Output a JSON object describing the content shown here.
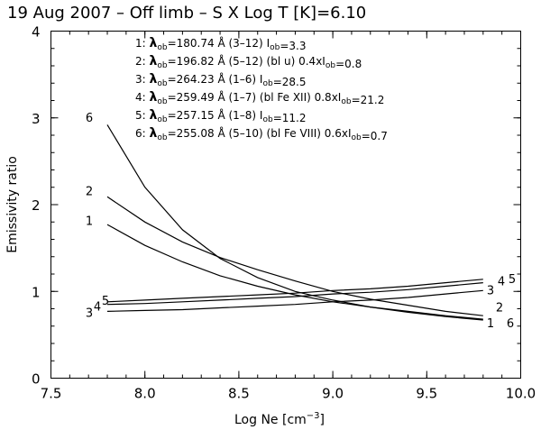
{
  "chart_data": {
    "type": "line",
    "title": "19 Aug 2007 – Off limb –    S  X   Log T [K]=6.10",
    "xlabel": "Log Ne [cm",
    "xlabel_sup": "−3",
    "xlabel_tail": "]",
    "ylabel": "Emissivity ratio",
    "xlim": [
      7.5,
      10.0
    ],
    "ylim": [
      0,
      4
    ],
    "xticks": [
      "7.5",
      "8.0",
      "8.5",
      "9.0",
      "9.5",
      "10.0"
    ],
    "xtick_values": [
      7.5,
      8.0,
      8.5,
      9.0,
      9.5,
      10.0
    ],
    "yticks": [
      "0",
      "1",
      "2",
      "3",
      "4"
    ],
    "ytick_values": [
      0,
      1,
      2,
      3,
      4
    ],
    "x": [
      7.8,
      8.0,
      8.2,
      8.4,
      8.6,
      8.8,
      9.0,
      9.2,
      9.4,
      9.6,
      9.8
    ],
    "series": [
      {
        "name": "1",
        "values": [
          1.77,
          1.53,
          1.34,
          1.18,
          1.06,
          0.96,
          0.88,
          0.82,
          0.77,
          0.72,
          0.68
        ]
      },
      {
        "name": "2",
        "values": [
          2.09,
          1.8,
          1.57,
          1.39,
          1.25,
          1.12,
          1.0,
          0.91,
          0.84,
          0.77,
          0.72
        ]
      },
      {
        "name": "3",
        "values": [
          0.77,
          0.78,
          0.79,
          0.81,
          0.83,
          0.85,
          0.88,
          0.9,
          0.93,
          0.97,
          1.01
        ]
      },
      {
        "name": "4",
        "values": [
          0.85,
          0.86,
          0.88,
          0.9,
          0.92,
          0.94,
          0.97,
          0.99,
          1.02,
          1.06,
          1.1
        ]
      },
      {
        "name": "5",
        "values": [
          0.88,
          0.9,
          0.92,
          0.94,
          0.96,
          0.98,
          1.01,
          1.03,
          1.06,
          1.1,
          1.14
        ]
      },
      {
        "name": "6",
        "values": [
          2.92,
          2.2,
          1.71,
          1.38,
          1.16,
          1.0,
          0.9,
          0.82,
          0.76,
          0.71,
          0.67
        ]
      }
    ],
    "left_labels": [
      {
        "text": "6",
        "y": 3.01
      },
      {
        "text": "2",
        "y": 2.16
      },
      {
        "text": "1",
        "y": 1.82
      }
    ],
    "left_labels_low": [
      {
        "text": "3",
        "y": 0.76
      },
      {
        "text": "4",
        "y": 0.83
      },
      {
        "text": "5",
        "y": 0.9
      }
    ],
    "right_labels": [
      {
        "text": "3",
        "dx": 0,
        "y": 1.02
      },
      {
        "text": "4",
        "dx": 12,
        "y": 1.12
      },
      {
        "text": "5",
        "dx": 24,
        "y": 1.15
      },
      {
        "text": "2",
        "dx": 10,
        "y": 0.82
      },
      {
        "text": "1",
        "dx": 0,
        "y": 0.64
      },
      {
        "text": "6",
        "dx": 22,
        "y": 0.64
      }
    ],
    "legend": [
      {
        "num": "1:",
        "lambda": "=180.74 Å (3–12) ",
        "rest": [
          {
            "t": "I",
            "s": "ob"
          },
          {
            "t": "=3.3"
          }
        ]
      },
      {
        "num": "2:",
        "lambda": "=196.82 Å (5–12) (bl u) 0.4xI",
        "rest": [
          {
            "s": "ob"
          },
          {
            "t": "=0.8"
          }
        ]
      },
      {
        "num": "3:",
        "lambda": "=264.23 Å (1–6) ",
        "rest": [
          {
            "t": "I",
            "s": "ob"
          },
          {
            "t": "=28.5"
          }
        ]
      },
      {
        "num": "4:",
        "lambda": "=259.49 Å (1–7) (bl Fe XII) 0.8xI",
        "rest": [
          {
            "s": "ob"
          },
          {
            "t": "=21.2"
          }
        ]
      },
      {
        "num": "5:",
        "lambda": "=257.15 Å (1–8)  ",
        "rest": [
          {
            "t": "I",
            "s": "ob"
          },
          {
            "t": "=11.2"
          }
        ]
      },
      {
        "num": "6:",
        "lambda": "=255.08 Å (5–10) (bl Fe VIII) 0.6xI",
        "rest": [
          {
            "s": "ob"
          },
          {
            "t": "=0.7"
          }
        ]
      }
    ],
    "lambda_symbol": "λ",
    "lambda_sub": "ob"
  }
}
